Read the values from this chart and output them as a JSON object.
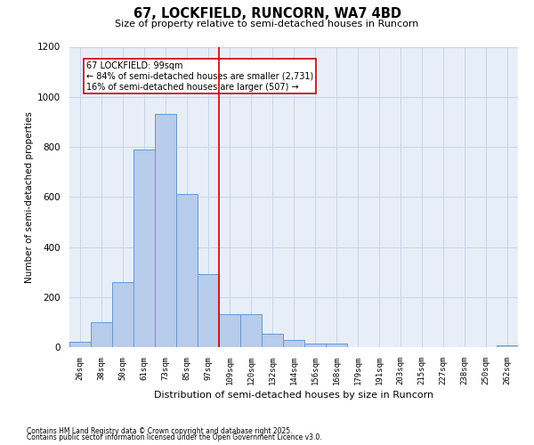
{
  "title_line1": "67, LOCKFIELD, RUNCORN, WA7 4BD",
  "title_line2": "Size of property relative to semi-detached houses in Runcorn",
  "xlabel": "Distribution of semi-detached houses by size in Runcorn",
  "ylabel": "Number of semi-detached properties",
  "bin_labels": [
    "26sqm",
    "38sqm",
    "50sqm",
    "61sqm",
    "73sqm",
    "85sqm",
    "97sqm",
    "109sqm",
    "120sqm",
    "132sqm",
    "144sqm",
    "156sqm",
    "168sqm",
    "179sqm",
    "191sqm",
    "203sqm",
    "215sqm",
    "227sqm",
    "238sqm",
    "250sqm",
    "262sqm"
  ],
  "bar_heights": [
    20,
    100,
    260,
    790,
    930,
    610,
    290,
    130,
    130,
    55,
    30,
    15,
    15,
    0,
    0,
    0,
    0,
    0,
    0,
    0,
    8
  ],
  "bar_color": "#b8ccec",
  "bar_edge_color": "#6699cc",
  "vline_x": 6.5,
  "vline_color": "#cc0000",
  "annotation_text": "67 LOCKFIELD: 99sqm\n← 84% of semi-detached houses are smaller (2,731)\n16% of semi-detached houses are larger (507) →",
  "annotation_box_color": "#cc0000",
  "ylim": [
    0,
    1200
  ],
  "yticks": [
    0,
    200,
    400,
    600,
    800,
    1000,
    1200
  ],
  "grid_color": "#c8d4e8",
  "background_color": "#e8eef8",
  "footer_line1": "Contains HM Land Registry data © Crown copyright and database right 2025.",
  "footer_line2": "Contains public sector information licensed under the Open Government Licence v3.0."
}
